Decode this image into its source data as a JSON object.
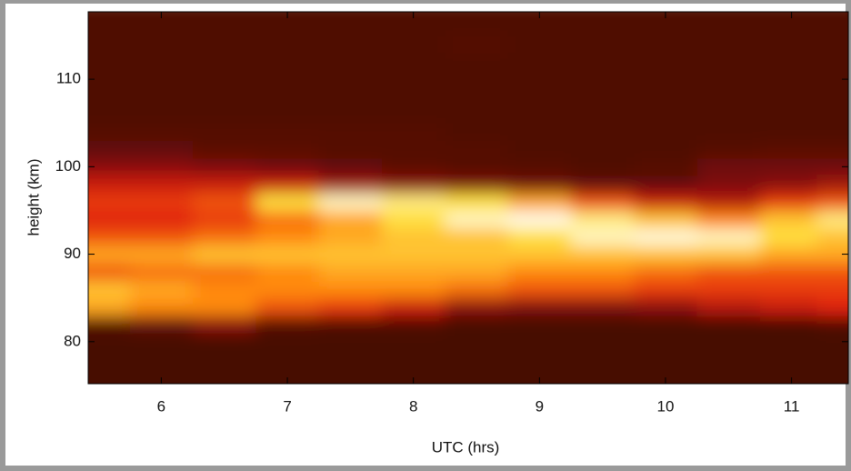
{
  "chart_data": {
    "type": "heatmap",
    "xlabel": "UTC (hrs)",
    "ylabel": "height (km)",
    "xlim": [
      5.42,
      11.45
    ],
    "ylim": [
      75.2,
      117.7
    ],
    "xticks": [
      6,
      7,
      8,
      9,
      10,
      11
    ],
    "yticks": [
      80,
      90,
      100,
      110
    ],
    "x": [
      5.5,
      6.0,
      6.5,
      7.0,
      7.5,
      8.0,
      8.5,
      9.0,
      9.5,
      10.0,
      10.5,
      11.0,
      11.4
    ],
    "y": [
      76,
      78,
      80,
      82,
      84,
      86,
      88,
      90,
      92,
      94,
      96,
      98,
      100,
      102,
      104,
      106,
      108,
      110,
      112,
      114,
      116
    ],
    "z": [
      [
        0.05,
        0.05,
        0.05,
        0.1,
        0.75,
        0.8,
        0.6,
        0.75,
        0.6,
        0.5,
        0.55,
        0.45,
        0.3,
        0.15,
        0.1,
        0.08,
        0.08,
        0.08,
        0.08,
        0.08,
        0.08
      ],
      [
        0.05,
        0.05,
        0.05,
        0.15,
        0.7,
        0.75,
        0.65,
        0.75,
        0.6,
        0.5,
        0.55,
        0.45,
        0.3,
        0.15,
        0.1,
        0.08,
        0.08,
        0.08,
        0.08,
        0.08,
        0.08
      ],
      [
        0.05,
        0.05,
        0.05,
        0.3,
        0.7,
        0.7,
        0.65,
        0.8,
        0.65,
        0.55,
        0.6,
        0.45,
        0.25,
        0.12,
        0.1,
        0.08,
        0.08,
        0.08,
        0.08,
        0.08,
        0.08
      ],
      [
        0.05,
        0.05,
        0.05,
        0.1,
        0.6,
        0.7,
        0.7,
        0.8,
        0.7,
        0.65,
        0.85,
        0.45,
        0.2,
        0.12,
        0.1,
        0.08,
        0.08,
        0.08,
        0.08,
        0.08,
        0.08
      ],
      [
        0.05,
        0.05,
        0.05,
        0.08,
        0.55,
        0.7,
        0.75,
        0.8,
        0.75,
        0.75,
        0.95,
        0.35,
        0.15,
        0.1,
        0.1,
        0.08,
        0.08,
        0.08,
        0.08,
        0.08,
        0.08
      ],
      [
        0.05,
        0.05,
        0.05,
        0.08,
        0.45,
        0.7,
        0.75,
        0.8,
        0.8,
        0.85,
        0.9,
        0.3,
        0.12,
        0.1,
        0.1,
        0.08,
        0.08,
        0.08,
        0.08,
        0.08,
        0.08
      ],
      [
        0.05,
        0.05,
        0.05,
        0.05,
        0.3,
        0.65,
        0.75,
        0.8,
        0.8,
        0.95,
        0.85,
        0.25,
        0.1,
        0.1,
        0.08,
        0.08,
        0.08,
        0.08,
        0.08,
        0.1,
        0.08
      ],
      [
        0.05,
        0.05,
        0.05,
        0.05,
        0.25,
        0.6,
        0.7,
        0.8,
        0.85,
        0.98,
        0.75,
        0.2,
        0.1,
        0.08,
        0.08,
        0.08,
        0.08,
        0.08,
        0.08,
        0.08,
        0.08
      ],
      [
        0.05,
        0.05,
        0.05,
        0.05,
        0.25,
        0.6,
        0.7,
        0.8,
        0.95,
        0.9,
        0.6,
        0.15,
        0.08,
        0.08,
        0.08,
        0.08,
        0.08,
        0.08,
        0.08,
        0.08,
        0.08
      ],
      [
        0.05,
        0.05,
        0.05,
        0.05,
        0.3,
        0.55,
        0.65,
        0.8,
        0.97,
        0.8,
        0.45,
        0.15,
        0.1,
        0.08,
        0.08,
        0.08,
        0.08,
        0.08,
        0.08,
        0.08,
        0.08
      ],
      [
        0.05,
        0.05,
        0.05,
        0.05,
        0.4,
        0.55,
        0.6,
        0.8,
        0.95,
        0.7,
        0.4,
        0.25,
        0.2,
        0.1,
        0.08,
        0.08,
        0.08,
        0.08,
        0.08,
        0.08,
        0.08
      ],
      [
        0.05,
        0.05,
        0.05,
        0.05,
        0.45,
        0.55,
        0.6,
        0.75,
        0.85,
        0.8,
        0.55,
        0.3,
        0.2,
        0.12,
        0.08,
        0.08,
        0.08,
        0.08,
        0.08,
        0.08,
        0.08
      ],
      [
        0.05,
        0.05,
        0.05,
        0.08,
        0.5,
        0.55,
        0.6,
        0.75,
        0.8,
        0.9,
        0.6,
        0.35,
        0.2,
        0.12,
        0.08,
        0.08,
        0.08,
        0.08,
        0.08,
        0.08,
        0.08
      ]
    ]
  }
}
